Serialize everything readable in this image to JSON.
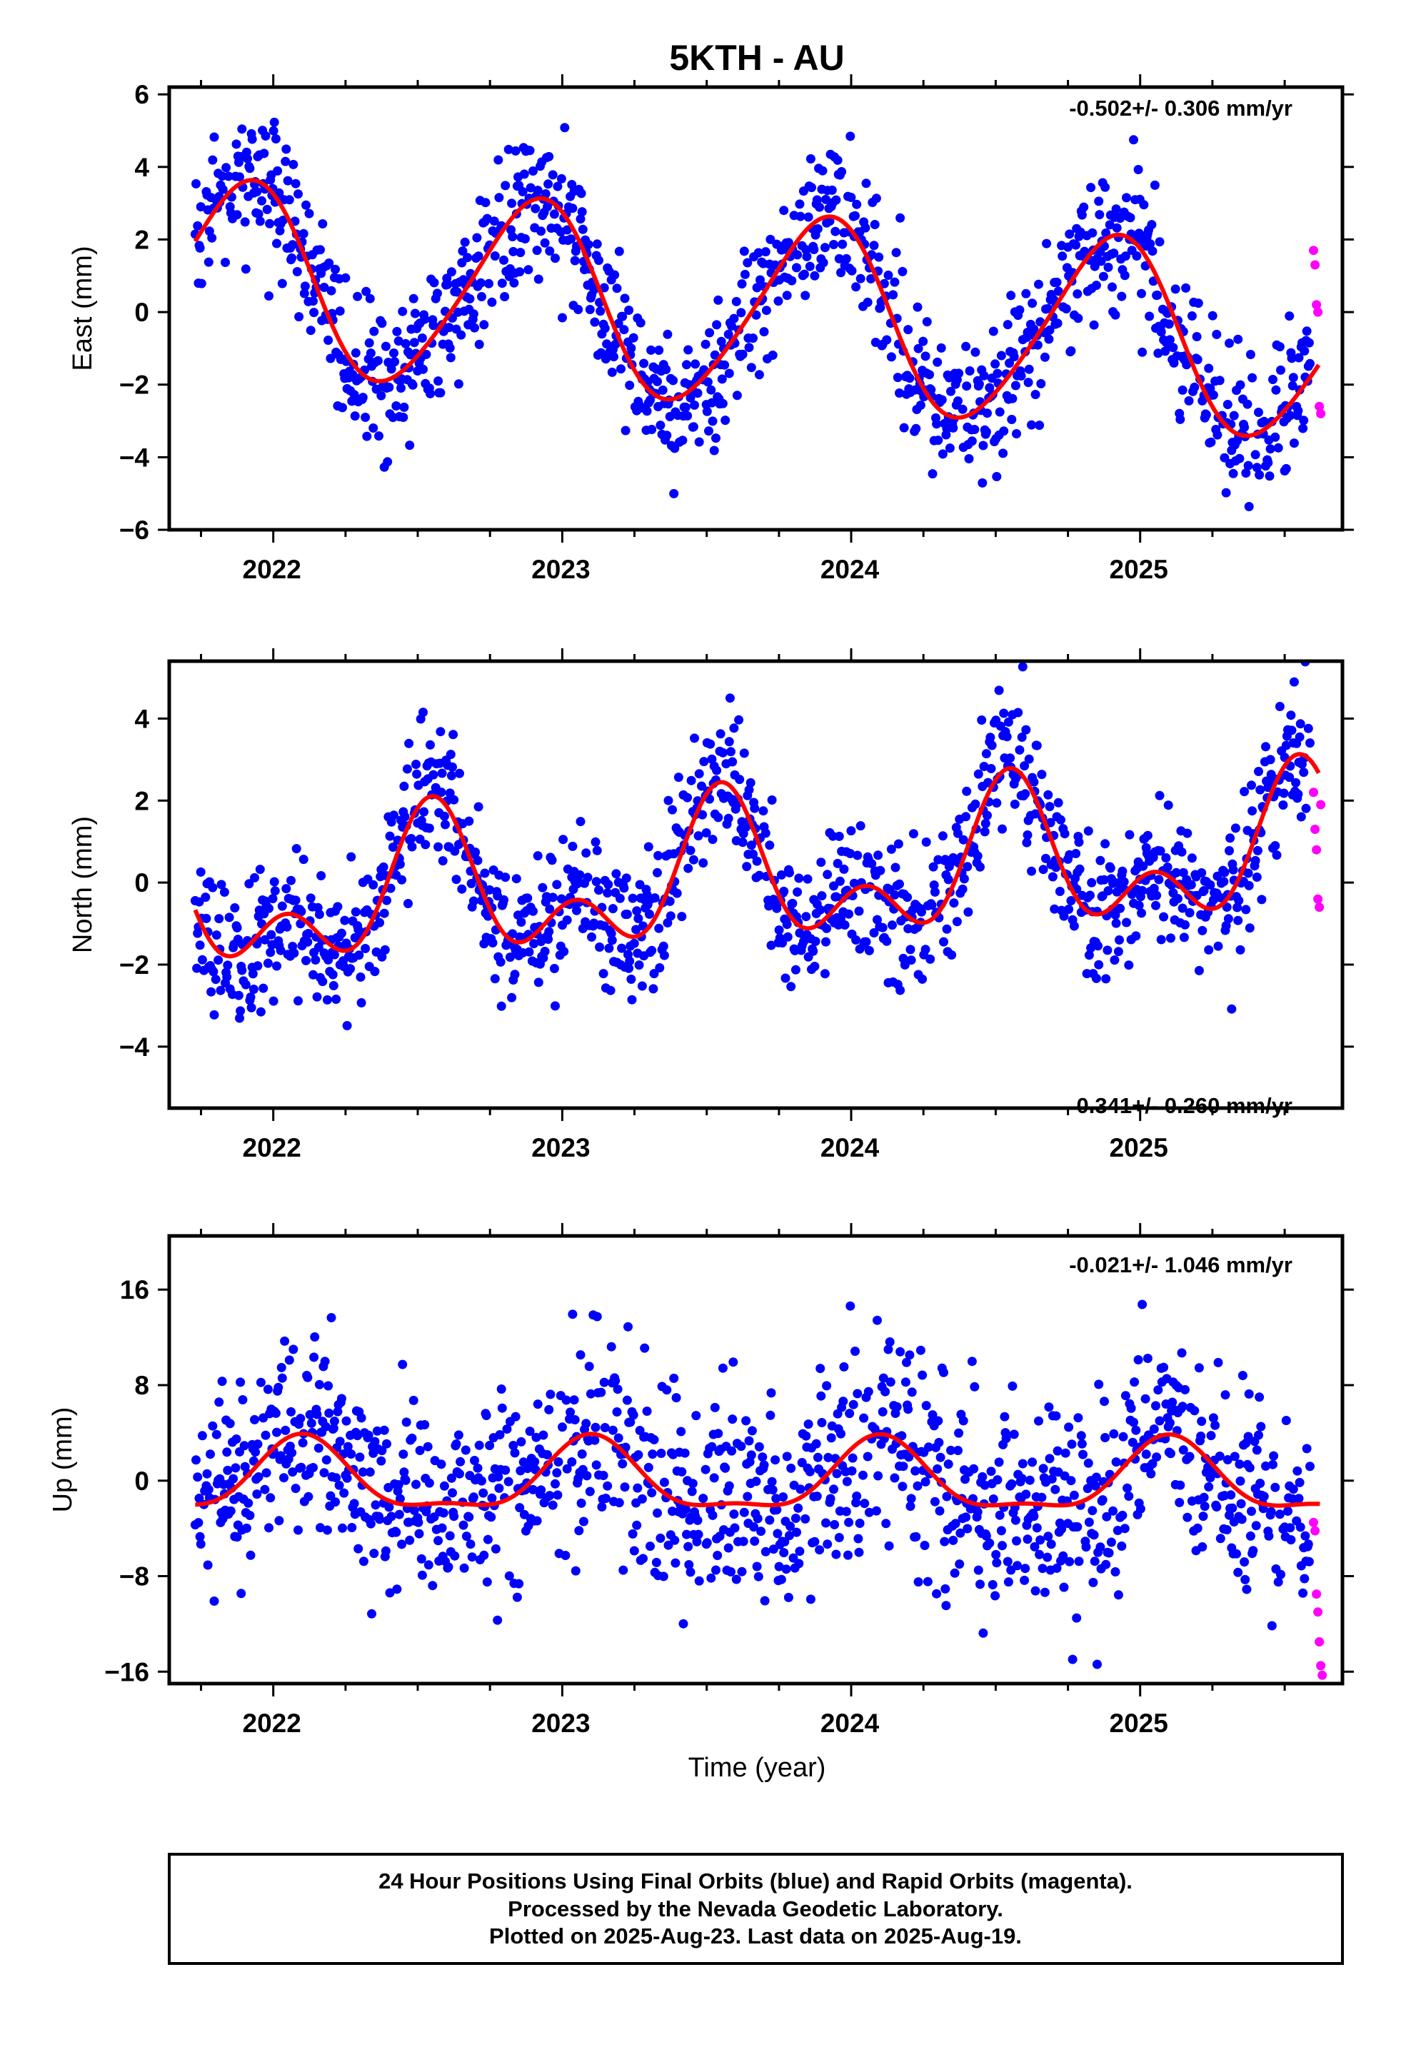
{
  "title": "5KTH - AU",
  "xlabel": "Time (year)",
  "footer": {
    "line1": "24 Hour Positions Using Final Orbits (blue) and Rapid Orbits (magenta).",
    "line2": "Processed by the Nevada Geodetic Laboratory.",
    "line3": "Plotted on 2025-Aug-23. Last data on 2025-Aug-19."
  },
  "colors": {
    "final_orbits": "#0000ff",
    "rapid_orbits": "#ff00ff",
    "model_fit": "#ff0000"
  },
  "chart_data": [
    {
      "type": "scatter",
      "panel": "east",
      "ylabel": "East (mm)",
      "rate_label": "-0.502+/- 0.306 mm/yr",
      "xlim": [
        2021.64,
        2025.7
      ],
      "ylim": [
        -6,
        6.2
      ],
      "yticks": [
        6,
        4,
        2,
        0,
        -2,
        -4,
        -6
      ],
      "yticks_text": [
        "6",
        "4",
        "2",
        "0",
        "−2",
        "−4",
        "−6"
      ],
      "xticks": [
        2022,
        2023,
        2024,
        2025
      ],
      "xticks_text": [
        "2022",
        "2023",
        "2024",
        "2025"
      ],
      "seasonal_model": {
        "offset": 0.0,
        "trend": -0.502,
        "t0": 2023.7,
        "annual_amp": 2.6,
        "annual_peak": 2021.9,
        "semiannual_amp": 0.3,
        "semiannual_peak": 2022.0
      },
      "scatter_spread": 1.0,
      "rapid": {
        "x": [
          2025.6,
          2025.605,
          2025.61,
          2025.615,
          2025.62,
          2025.625
        ],
        "y": [
          1.7,
          1.3,
          0.2,
          0.0,
          -2.6,
          -2.8
        ]
      },
      "series": [
        {
          "name": "Final Orbits",
          "color": "#0000ff"
        },
        {
          "name": "Rapid Orbits",
          "color": "#ff00ff"
        },
        {
          "name": "Model Fit",
          "color": "#ff0000"
        }
      ]
    },
    {
      "type": "scatter",
      "panel": "north",
      "ylabel": "North (mm)",
      "rate_label": "0.341+/- 0.260 mm/yr",
      "xlim": [
        2021.64,
        2025.7
      ],
      "ylim": [
        -5.5,
        5.4
      ],
      "yticks": [
        4,
        2,
        0,
        -2,
        -4
      ],
      "yticks_text": [
        "4",
        "2",
        "0",
        "−2",
        "−4"
      ],
      "xticks": [
        2022,
        2023,
        2024,
        2025
      ],
      "xticks_text": [
        "2022",
        "2023",
        "2024",
        "2025"
      ],
      "seasonal_model": {
        "offset": 0.1,
        "trend": 0.341,
        "t0": 2023.7,
        "annual_amp": 1.35,
        "annual_peak": 2022.55,
        "semiannual_amp": 1.05,
        "semiannual_peak": 2022.55
      },
      "scatter_spread": 0.85,
      "rapid": {
        "x": [
          2025.6,
          2025.605,
          2025.61,
          2025.615,
          2025.62,
          2025.625
        ],
        "y": [
          2.2,
          1.3,
          0.8,
          -0.4,
          -0.6,
          1.9
        ]
      },
      "series": [
        {
          "name": "Final Orbits",
          "color": "#0000ff"
        },
        {
          "name": "Rapid Orbits",
          "color": "#ff00ff"
        },
        {
          "name": "Model Fit",
          "color": "#ff0000"
        }
      ]
    },
    {
      "type": "scatter",
      "panel": "up",
      "ylabel": "Up (mm)",
      "rate_label": "-0.021+/- 1.046 mm/yr",
      "xlim": [
        2021.64,
        2025.7
      ],
      "ylim": [
        -17,
        20.5
      ],
      "yticks": [
        16,
        8,
        0,
        -8,
        -16
      ],
      "yticks_text": [
        "16",
        "8",
        "0",
        "−8",
        "−16"
      ],
      "xticks": [
        2022,
        2023,
        2024,
        2025
      ],
      "xticks_text": [
        "2022",
        "2023",
        "2024",
        "2025"
      ],
      "seasonal_model": {
        "offset": 0.0,
        "trend": -0.021,
        "t0": 2023.7,
        "annual_amp": 2.9,
        "annual_peak": 2022.1,
        "semiannual_amp": 1.0,
        "semiannual_peak": 2022.1
      },
      "scatter_spread": 4.2,
      "rapid": {
        "x": [
          2025.6,
          2025.605,
          2025.61,
          2025.615,
          2025.62,
          2025.625,
          2025.63
        ],
        "y": [
          -3.5,
          -4.2,
          -9.5,
          -11.0,
          -13.5,
          -15.5,
          -16.3
        ]
      },
      "series": [
        {
          "name": "Final Orbits",
          "color": "#0000ff"
        },
        {
          "name": "Rapid Orbits",
          "color": "#ff00ff"
        },
        {
          "name": "Model Fit",
          "color": "#ff0000"
        }
      ]
    }
  ]
}
